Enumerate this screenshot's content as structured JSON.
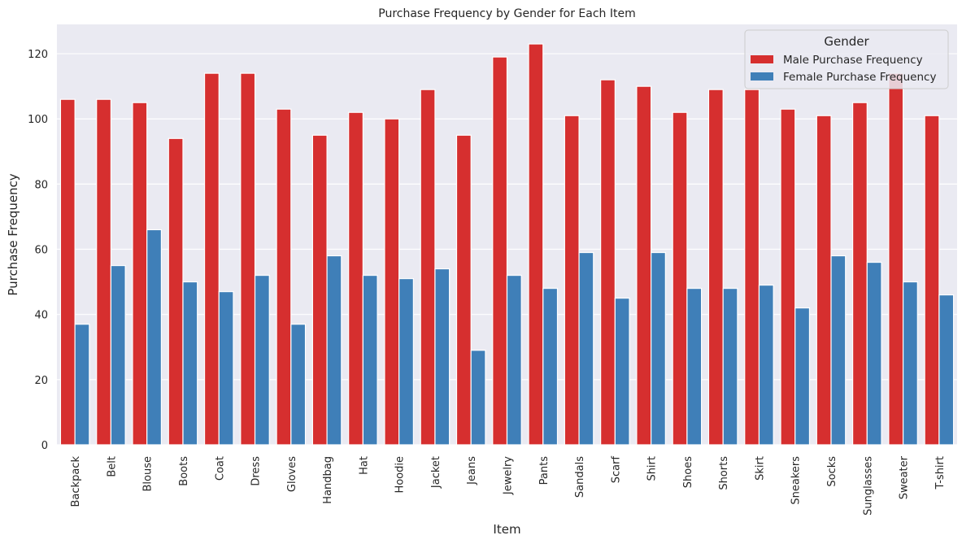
{
  "chart_data": {
    "type": "bar",
    "title": "Purchase Frequency by Gender for Each Item",
    "xlabel": "Item",
    "ylabel": "Purchase Frequency",
    "ylim": [
      0,
      129
    ],
    "yticks": [
      0,
      20,
      40,
      60,
      80,
      100,
      120
    ],
    "grid": true,
    "legend_title": "Gender",
    "legend_placement": "top-right",
    "categories": [
      "Backpack",
      "Belt",
      "Blouse",
      "Boots",
      "Coat",
      "Dress",
      "Gloves",
      "Handbag",
      "Hat",
      "Hoodie",
      "Jacket",
      "Jeans",
      "Jewelry",
      "Pants",
      "Sandals",
      "Scarf",
      "Shirt",
      "Shoes",
      "Shorts",
      "Skirt",
      "Sneakers",
      "Socks",
      "Sunglasses",
      "Sweater",
      "T-shirt"
    ],
    "series": [
      {
        "name": "Male Purchase Frequency",
        "color": "#d62f2f",
        "values": [
          106,
          106,
          105,
          94,
          114,
          114,
          103,
          95,
          102,
          100,
          109,
          95,
          119,
          123,
          101,
          112,
          110,
          102,
          109,
          109,
          103,
          101,
          105,
          114,
          101
        ]
      },
      {
        "name": "Female Purchase Frequency",
        "color": "#3f7fb8",
        "values": [
          37,
          55,
          66,
          50,
          47,
          52,
          37,
          58,
          52,
          51,
          54,
          29,
          52,
          48,
          59,
          45,
          59,
          48,
          48,
          49,
          42,
          58,
          56,
          50,
          46
        ]
      }
    ]
  },
  "colors": {
    "plot_background": "#eaeaf2",
    "grid": "#ffffff",
    "bar_edge": "#ffffff"
  }
}
